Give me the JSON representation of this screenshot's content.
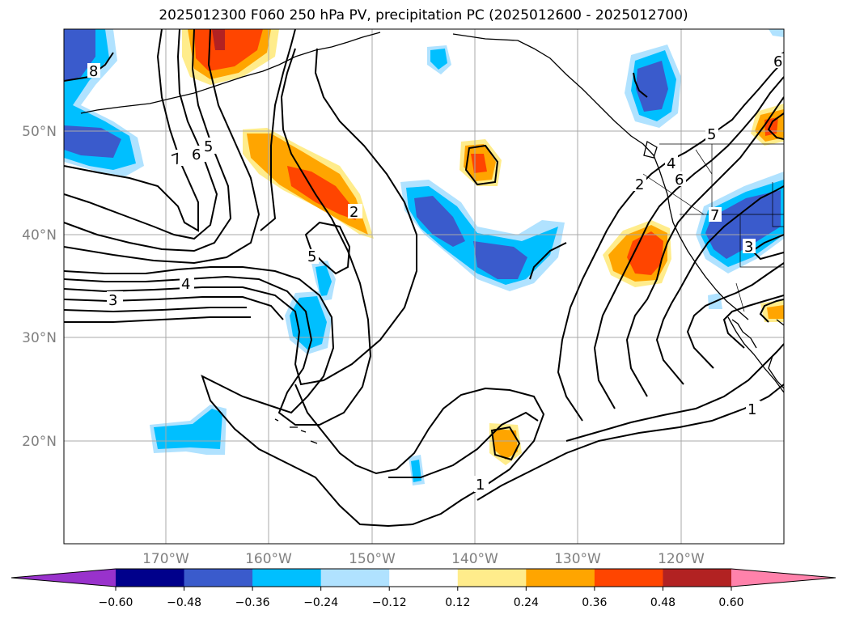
{
  "title": "2025012300 F060 250 hPa PV, precipitation PC (2025012600 - 2025012700)",
  "latitude_labels": [
    "50°N",
    "40°N",
    "30°N",
    "20°N"
  ],
  "longitude_labels": [
    "170°W",
    "160°W",
    "150°W",
    "140°W",
    "130°W",
    "120°W"
  ],
  "colorbar": {
    "tick_labels": [
      "−0.60",
      "−0.48",
      "−0.36",
      "−0.24",
      "−0.12",
      "0.12",
      "0.24",
      "0.36",
      "0.48",
      "0.60"
    ],
    "colors": [
      "#9932cc",
      "#00008b",
      "#3a5bcc",
      "#00bfff",
      "#b0e2ff",
      "#ffffff",
      "#ffec8b",
      "#ffa500",
      "#ff4500",
      "#b22222",
      "#ff82ab"
    ]
  },
  "contour_labels": {
    "nw_7": "7",
    "nw_6": "6",
    "nw_5": "5",
    "nw_8": "8",
    "w_3": "3",
    "w_4": "4",
    "center_5": "5",
    "center_2": "2",
    "south_1": "1",
    "east_1": "1",
    "coast_2": "2",
    "coast_4": "4",
    "coast_6": "6",
    "coast_5": "5",
    "coast_7": "7",
    "coast_3": "3",
    "ne_6": "6"
  }
}
